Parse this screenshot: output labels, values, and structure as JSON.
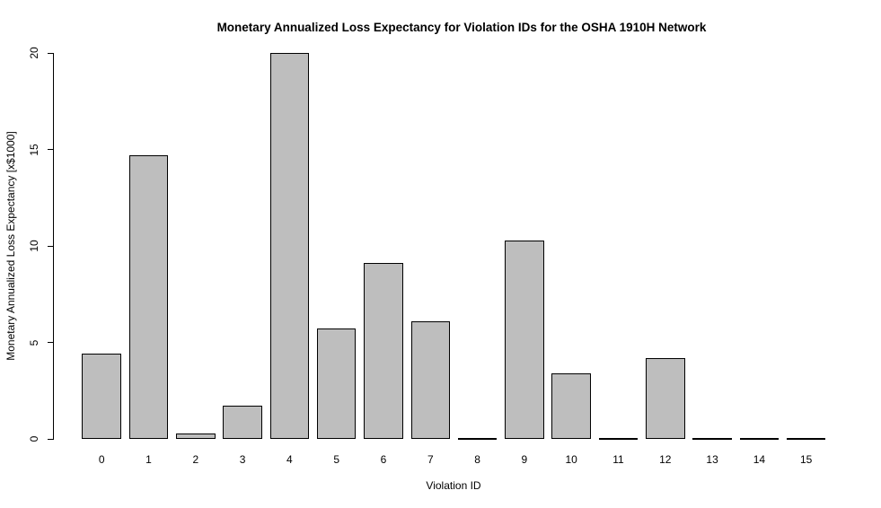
{
  "chart_data": {
    "type": "bar",
    "title": "Monetary Annualized Loss Expectancy for Violation IDs for the OSHA 1910H Network",
    "xlabel": "Violation ID",
    "ylabel": "Monetary Annualized Loss Expectancy [x$1000]",
    "categories": [
      "0",
      "1",
      "2",
      "3",
      "4",
      "5",
      "6",
      "7",
      "8",
      "9",
      "10",
      "11",
      "12",
      "13",
      "14",
      "15"
    ],
    "values": [
      4.4,
      14.7,
      0.3,
      1.7,
      20.0,
      5.7,
      9.1,
      6.1,
      0,
      10.3,
      3.4,
      0,
      4.2,
      0,
      0,
      0
    ],
    "ylim": [
      0,
      20
    ],
    "yticks": [
      0,
      5,
      10,
      15,
      20
    ],
    "grid": false,
    "legend": "none",
    "bar_fill_color": "#BEBEBE",
    "bar_border_color": "#000000",
    "background_color": "#FFFFFF",
    "text_color": "#000000"
  }
}
